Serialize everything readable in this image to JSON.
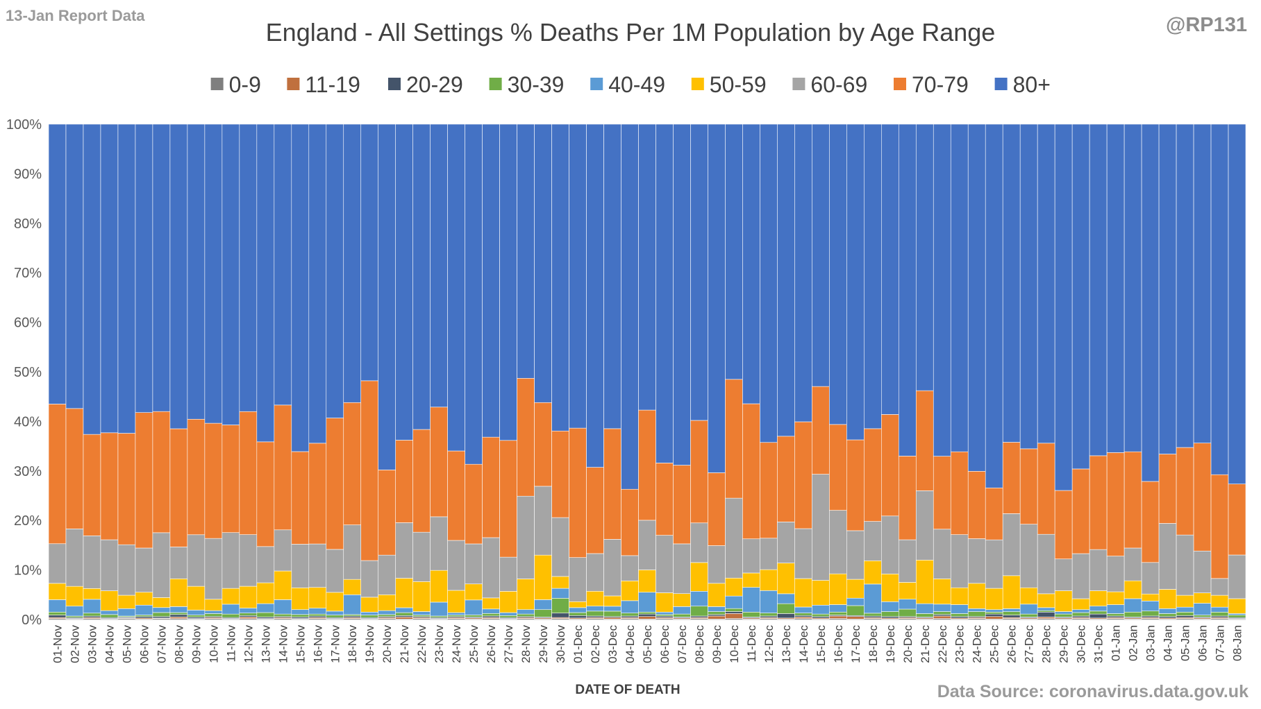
{
  "header": {
    "report_label": "13-Jan Report Data",
    "handle": "@RP131"
  },
  "footer": {
    "source": "Data Source: coronavirus.data.gov.uk"
  },
  "colors": {
    "0-9": "#7f7f7f",
    "11-19": "#c0703e",
    "20-29": "#44546a",
    "30-39": "#70ad47",
    "40-49": "#5b9bd5",
    "50-59": "#ffc000",
    "60-69": "#a5a5a5",
    "70-79": "#ed7d31",
    "80+": "#4472c4"
  },
  "chart_data": {
    "type": "bar",
    "stacked": "percent",
    "title": "England - All Settings % Deaths Per 1M Population by Age Range",
    "xlabel": "DATE OF DEATH",
    "ylabel": "",
    "ylim": [
      0,
      100
    ],
    "yticks": [
      "0%",
      "10%",
      "20%",
      "30%",
      "40%",
      "50%",
      "60%",
      "70%",
      "80%",
      "90%",
      "100%"
    ],
    "legend_position": "top",
    "grid": true,
    "categories": [
      "01-Nov",
      "02-Nov",
      "03-Nov",
      "04-Nov",
      "05-Nov",
      "06-Nov",
      "07-Nov",
      "08-Nov",
      "09-Nov",
      "10-Nov",
      "11-Nov",
      "12-Nov",
      "13-Nov",
      "14-Nov",
      "15-Nov",
      "16-Nov",
      "17-Nov",
      "18-Nov",
      "19-Nov",
      "20-Nov",
      "21-Nov",
      "22-Nov",
      "23-Nov",
      "24-Nov",
      "25-Nov",
      "26-Nov",
      "27-Nov",
      "28-Nov",
      "29-Nov",
      "30-Nov",
      "01-Dec",
      "02-Dec",
      "03-Dec",
      "04-Dec",
      "05-Dec",
      "06-Dec",
      "07-Dec",
      "08-Dec",
      "09-Dec",
      "10-Dec",
      "11-Dec",
      "12-Dec",
      "13-Dec",
      "14-Dec",
      "15-Dec",
      "16-Dec",
      "17-Dec",
      "18-Dec",
      "19-Dec",
      "20-Dec",
      "21-Dec",
      "22-Dec",
      "23-Dec",
      "24-Dec",
      "25-Dec",
      "26-Dec",
      "27-Dec",
      "28-Dec",
      "29-Dec",
      "30-Dec",
      "31-Dec",
      "01-Jan",
      "02-Jan",
      "03-Jan",
      "04-Jan",
      "05-Jan",
      "06-Jan",
      "07-Jan",
      "08-Jan"
    ],
    "series": [
      {
        "name": "0-9",
        "values": [
          0.2,
          0.1,
          0.2,
          0.1,
          0.2,
          0.1,
          0.2,
          0.2,
          0.1,
          0.2,
          0.1,
          0.2,
          0.1,
          0.2,
          0.1,
          0.2,
          0.1,
          0.2,
          0.1,
          0.2,
          0.1,
          0.2,
          0.1,
          0.2,
          0.1,
          0.2,
          0.1,
          0.2,
          0.1,
          0.2,
          0.1,
          0.2,
          0.1,
          0.2,
          0.1,
          0.2,
          0.1,
          0.2,
          0.1,
          0.2,
          0.1,
          0.2,
          0.1,
          0.2,
          0.1,
          0.2,
          0.1,
          0.2,
          0.1,
          0.2,
          0.1,
          0.2,
          0.1,
          0.2,
          0.1,
          0.2,
          0.1,
          0.2,
          0.1,
          0.2,
          0.1,
          0.2,
          0.1,
          0.2,
          0.1,
          0.2,
          0.1,
          0.2,
          0.1
        ]
      },
      {
        "name": "11-19",
        "values": [
          0.2,
          0.1,
          0.2,
          0.1,
          0.1,
          0.2,
          0.1,
          0.3,
          0.1,
          0.2,
          0.1,
          0.3,
          0.1,
          0.2,
          0.1,
          0.2,
          0.1,
          0.2,
          0.1,
          0.2,
          0.4,
          0.2,
          0.1,
          0.2,
          0.2,
          0.2,
          0.1,
          0.2,
          0.2,
          0.2,
          0.2,
          0.2,
          0.3,
          0.2,
          0.5,
          0.2,
          0.2,
          0.2,
          0.6,
          1.0,
          0.2,
          0.2,
          0.2,
          0.3,
          0.2,
          0.5,
          0.5,
          0.2,
          0.2,
          0.2,
          0.2,
          0.5,
          0.2,
          0.2,
          0.5,
          0.2,
          0.2,
          0.3,
          0.2,
          0.2,
          0.2,
          0.2,
          0.2,
          0.2,
          0.2,
          0.2,
          0.2,
          0.2,
          0.1
        ]
      },
      {
        "name": "20-29",
        "values": [
          0.5,
          0.2,
          0.3,
          0.2,
          0.2,
          0.3,
          0.3,
          0.5,
          0.3,
          0.2,
          0.2,
          0.3,
          0.3,
          0.2,
          0.3,
          0.3,
          0.2,
          0.3,
          0.2,
          0.2,
          0.3,
          0.2,
          0.2,
          0.2,
          0.2,
          0.3,
          0.2,
          0.2,
          0.2,
          0.9,
          0.5,
          0.3,
          0.2,
          0.3,
          0.5,
          0.3,
          0.2,
          0.3,
          0.3,
          0.4,
          0.2,
          0.3,
          0.9,
          0.3,
          0.3,
          0.2,
          0.2,
          0.3,
          0.3,
          0.2,
          0.2,
          0.3,
          0.3,
          0.2,
          0.5,
          0.5,
          0.2,
          1.0,
          0.2,
          0.3,
          0.8,
          0.3,
          0.2,
          0.3,
          0.3,
          0.4,
          0.2,
          0.3,
          0.2
        ]
      },
      {
        "name": "30-39",
        "values": [
          0.6,
          0.3,
          0.6,
          0.6,
          0.2,
          0.3,
          0.8,
          0.4,
          0.4,
          0.6,
          0.7,
          0.5,
          0.9,
          0.5,
          0.5,
          0.4,
          0.5,
          0.3,
          0.5,
          0.4,
          0.6,
          0.3,
          0.3,
          0.3,
          0.4,
          0.5,
          0.4,
          0.5,
          1.5,
          3.0,
          0.6,
          1.0,
          1.1,
          0.6,
          0.4,
          0.3,
          0.6,
          2.0,
          0.6,
          0.6,
          1.0,
          0.6,
          2.0,
          0.5,
          0.5,
          0.6,
          2.0,
          0.6,
          1.0,
          1.5,
          0.7,
          0.6,
          0.6,
          1.0,
          0.4,
          0.7,
          0.6,
          0.3,
          0.6,
          0.7,
          0.6,
          0.5,
          1.0,
          1.0,
          0.6,
          0.7,
          0.4,
          0.8,
          0.5
        ]
      },
      {
        "name": "40-49",
        "values": [
          2.5,
          2.0,
          2.8,
          0.8,
          1.5,
          2.0,
          1.0,
          1.2,
          1.0,
          0.6,
          2.0,
          1.0,
          1.8,
          2.9,
          1.0,
          1.2,
          0.8,
          4.0,
          0.6,
          0.8,
          1.0,
          0.7,
          2.8,
          0.5,
          3.0,
          0.9,
          0.6,
          0.9,
          2.0,
          2.0,
          1.0,
          1.0,
          1.0,
          2.5,
          4.0,
          0.5,
          1.5,
          3.0,
          1.0,
          2.5,
          5.0,
          4.5,
          2.0,
          1.2,
          1.8,
          1.5,
          1.5,
          6.0,
          2.0,
          2.0,
          2.0,
          1.5,
          1.8,
          0.6,
          0.5,
          0.6,
          2.0,
          0.6,
          0.5,
          0.6,
          1.0,
          1.8,
          2.7,
          2.0,
          1.0,
          1.0,
          2.4,
          1.0,
          0.3
        ]
      },
      {
        "name": "50-59",
        "values": [
          3.3,
          4.0,
          2.2,
          4.0,
          2.7,
          2.6,
          2.0,
          5.6,
          4.8,
          2.3,
          3.2,
          4.4,
          4.2,
          5.8,
          4.4,
          4.2,
          3.8,
          3.1,
          3.0,
          3.2,
          6.0,
          6.0,
          6.4,
          4.5,
          3.2,
          2.2,
          4.3,
          6.2,
          9.0,
          2.4,
          1.2,
          3.0,
          2.1,
          4.0,
          4.5,
          3.9,
          2.6,
          5.8,
          4.7,
          3.6,
          2.9,
          4.2,
          6.2,
          5.7,
          5.0,
          6.2,
          3.8,
          4.8,
          5.6,
          3.4,
          8.8,
          5.1,
          3.4,
          5.1,
          4.3,
          6.7,
          3.3,
          2.8,
          4.2,
          2.2,
          3.1,
          2.6,
          3.6,
          1.4,
          3.9,
          2.4,
          2.1,
          2.4,
          3.0
        ]
      },
      {
        "name": "60-69",
        "values": [
          8.0,
          11.6,
          10.7,
          10.3,
          10.2,
          8.9,
          13.0,
          6.4,
          10.4,
          12.3,
          11.3,
          10.4,
          7.3,
          8.3,
          8.8,
          8.8,
          8.7,
          11.0,
          7.4,
          8.0,
          11.3,
          9.9,
          10.8,
          10.1,
          8.0,
          12.0,
          6.9,
          16.7,
          13.9,
          11.9,
          8.9,
          7.6,
          11.5,
          5.1,
          10.0,
          11.6,
          10.0,
          8.0,
          7.6,
          16.0,
          6.9,
          6.3,
          8.3,
          10.0,
          21.4,
          12.8,
          9.8,
          8.1,
          11.7,
          8.6,
          14.0,
          10.0,
          10.7,
          9.0,
          9.8,
          12.6,
          12.8,
          12.0,
          6.4,
          9.1,
          8.3,
          7.2,
          6.6,
          6.3,
          13.3,
          12.2,
          8.5,
          3.4,
          8.8
        ]
      },
      {
        "name": "70-79",
        "values": [
          28.2,
          24.3,
          20.6,
          21.6,
          22.5,
          27.3,
          24.3,
          23.8,
          23.3,
          23.3,
          21.8,
          24.8,
          21.1,
          25.2,
          18.7,
          20.4,
          26.6,
          24.7,
          36.3,
          17.2,
          16.8,
          20.6,
          22.1,
          18.1,
          15.9,
          20.0,
          23.6,
          23.8,
          16.9,
          17.5,
          26.1,
          17.4,
          22.5,
          13.4,
          22.2,
          14.6,
          15.8,
          20.7,
          14.7,
          23.8,
          27.3,
          19.2,
          17.3,
          21.4,
          17.7,
          17.3,
          18.3,
          19.1,
          20.5,
          16.9,
          20.2,
          14.7,
          16.7,
          13.6,
          10.5,
          14.5,
          15.2,
          18.4,
          13.8,
          17.1,
          18.9,
          20.9,
          19.4,
          16.2,
          14.0,
          17.7,
          21.9,
          21.0,
          14.3
        ]
      },
      {
        "name": "80+",
        "values": [
          56.5,
          57.4,
          63.0,
          62.3,
          62.4,
          58.1,
          57.6,
          61.3,
          59.5,
          60.5,
          60.9,
          57.9,
          64.0,
          56.7,
          66.1,
          64.6,
          59.5,
          56.2,
          51.8,
          69.8,
          64.3,
          61.2,
          57.0,
          66.1,
          67.9,
          62.3,
          63.9,
          51.3,
          56.2,
          62.0,
          61.3,
          69.2,
          61.9,
          73.7,
          57.6,
          68.4,
          68.5,
          59.8,
          70.3,
          51.1,
          56.5,
          63.8,
          63.0,
          59.6,
          52.9,
          60.5,
          63.6,
          62.7,
          58.6,
          67.0,
          53.8,
          66.9,
          66.0,
          70.0,
          73.5,
          64.6,
          65.4,
          64.4,
          73.8,
          69.6,
          66.8,
          66.3,
          66.0,
          71.4,
          66.6,
          65.4,
          64.7,
          70.9,
          72.5
        ]
      }
    ]
  }
}
